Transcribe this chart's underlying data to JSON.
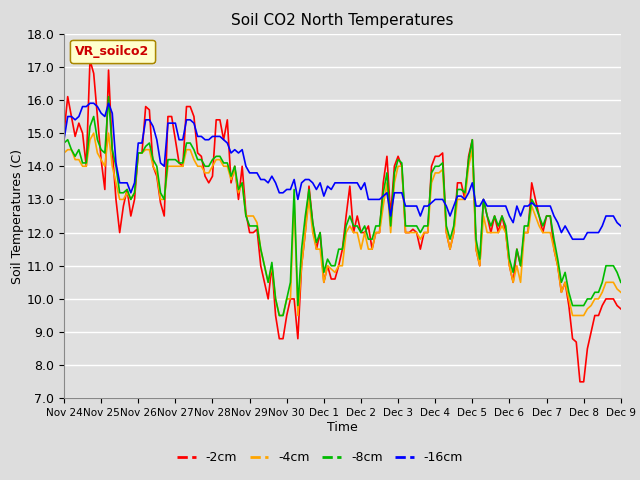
{
  "title": "Soil CO2 North Temperatures",
  "xlabel": "Time",
  "ylabel": "Soil Temperatures (C)",
  "ylim": [
    7.0,
    18.0
  ],
  "yticks": [
    7.0,
    8.0,
    9.0,
    10.0,
    11.0,
    12.0,
    13.0,
    14.0,
    15.0,
    16.0,
    17.0,
    18.0
  ],
  "x_labels": [
    "Nov 24",
    "Nov 25",
    "Nov 26",
    "Nov 27",
    "Nov 28",
    "Nov 29",
    "Nov 30",
    "Dec 1",
    "Dec 2",
    "Dec 3",
    "Dec 4",
    "Dec 5",
    "Dec 6",
    "Dec 7",
    "Dec 8",
    "Dec 9"
  ],
  "colors": {
    "-2cm": "#ff0000",
    "-4cm": "#ffa500",
    "-8cm": "#00bb00",
    "-16cm": "#0000ff"
  },
  "legend_label": "VR_soilco2",
  "fig_facecolor": "#dddddd",
  "ax_facecolor": "#e8e8e8",
  "series": {
    "-2cm": [
      15.0,
      16.1,
      15.5,
      14.9,
      15.3,
      15.0,
      14.0,
      17.2,
      16.8,
      15.5,
      14.2,
      13.3,
      16.9,
      14.5,
      13.0,
      12.0,
      12.8,
      13.3,
      12.5,
      13.0,
      14.4,
      14.4,
      15.8,
      15.7,
      14.0,
      13.7,
      12.9,
      12.5,
      15.5,
      15.5,
      14.8,
      14.1,
      14.0,
      15.8,
      15.8,
      15.5,
      14.4,
      14.3,
      13.7,
      13.5,
      13.7,
      15.4,
      15.4,
      14.8,
      15.4,
      13.5,
      14.0,
      13.0,
      14.0,
      12.6,
      12.0,
      12.0,
      12.1,
      11.0,
      10.5,
      10.0,
      11.0,
      9.5,
      8.8,
      8.8,
      9.5,
      10.0,
      10.0,
      8.8,
      11.0,
      12.0,
      13.4,
      12.3,
      11.5,
      12.0,
      10.5,
      11.0,
      10.6,
      10.6,
      11.0,
      11.5,
      12.5,
      13.4,
      12.0,
      12.5,
      12.0,
      12.0,
      12.2,
      11.5,
      12.0,
      12.0,
      13.5,
      14.3,
      12.5,
      14.0,
      14.3,
      14.0,
      12.0,
      12.0,
      12.1,
      12.0,
      11.5,
      12.0,
      12.0,
      14.0,
      14.3,
      14.3,
      14.4,
      12.0,
      11.5,
      12.0,
      13.5,
      13.5,
      13.0,
      14.3,
      14.8,
      11.5,
      11.0,
      13.0,
      12.5,
      12.0,
      12.5,
      12.0,
      12.5,
      12.0,
      11.0,
      10.5,
      11.5,
      11.0,
      12.0,
      12.0,
      13.5,
      13.0,
      12.5,
      12.0,
      12.5,
      12.5,
      11.5,
      11.0,
      10.2,
      10.5,
      9.8,
      8.8,
      8.7,
      7.5,
      7.5,
      8.5,
      9.0,
      9.5,
      9.5,
      9.8,
      10.0,
      10.0,
      10.0,
      9.8,
      9.7
    ],
    "-4cm": [
      14.4,
      14.5,
      14.5,
      14.2,
      14.2,
      14.0,
      14.0,
      14.8,
      15.0,
      14.4,
      14.2,
      14.0,
      15.0,
      14.0,
      13.5,
      13.0,
      13.0,
      13.2,
      13.0,
      13.2,
      14.4,
      14.4,
      14.5,
      14.5,
      14.0,
      13.8,
      13.0,
      13.0,
      14.0,
      14.0,
      14.0,
      14.0,
      14.0,
      14.5,
      14.5,
      14.2,
      14.0,
      14.0,
      13.8,
      13.8,
      14.0,
      14.2,
      14.2,
      14.0,
      14.0,
      13.6,
      13.9,
      13.2,
      13.5,
      12.5,
      12.5,
      12.5,
      12.3,
      11.5,
      11.0,
      10.5,
      11.0,
      10.0,
      9.5,
      9.5,
      10.0,
      10.0,
      13.0,
      9.5,
      11.0,
      12.0,
      13.0,
      12.0,
      11.5,
      11.5,
      10.5,
      11.0,
      10.9,
      10.8,
      11.0,
      11.0,
      12.0,
      12.2,
      12.0,
      12.0,
      11.5,
      12.0,
      11.5,
      11.5,
      12.0,
      12.0,
      12.8,
      13.5,
      12.0,
      13.5,
      14.0,
      14.0,
      12.0,
      12.0,
      12.0,
      12.0,
      11.8,
      12.0,
      12.0,
      13.5,
      13.8,
      13.8,
      13.9,
      12.0,
      11.5,
      12.0,
      13.0,
      13.0,
      13.0,
      14.0,
      14.5,
      11.5,
      11.0,
      12.5,
      12.0,
      12.0,
      12.0,
      12.0,
      12.2,
      12.0,
      11.0,
      10.5,
      11.0,
      10.5,
      12.0,
      12.0,
      12.8,
      12.5,
      12.2,
      12.0,
      12.0,
      12.0,
      11.5,
      11.0,
      10.2,
      10.5,
      10.0,
      9.5,
      9.5,
      9.5,
      9.5,
      9.7,
      9.8,
      10.0,
      10.0,
      10.2,
      10.5,
      10.5,
      10.5,
      10.3,
      10.2
    ],
    "-8cm": [
      14.7,
      14.8,
      14.5,
      14.3,
      14.5,
      14.1,
      14.1,
      15.2,
      15.5,
      14.8,
      14.5,
      14.4,
      16.1,
      14.5,
      14.0,
      13.2,
      13.2,
      13.3,
      13.0,
      13.2,
      14.4,
      14.4,
      14.6,
      14.7,
      14.2,
      14.0,
      13.2,
      13.0,
      14.2,
      14.2,
      14.2,
      14.1,
      14.1,
      14.7,
      14.7,
      14.5,
      14.2,
      14.2,
      14.0,
      14.0,
      14.2,
      14.3,
      14.3,
      14.1,
      14.1,
      13.7,
      14.0,
      13.3,
      13.5,
      12.5,
      12.2,
      12.2,
      12.2,
      11.5,
      11.0,
      10.5,
      11.1,
      10.0,
      9.5,
      9.5,
      10.0,
      10.5,
      13.3,
      9.8,
      11.5,
      12.5,
      13.3,
      12.3,
      11.7,
      12.0,
      10.8,
      11.2,
      11.0,
      11.0,
      11.5,
      11.5,
      12.2,
      12.5,
      12.2,
      12.2,
      12.0,
      12.2,
      11.8,
      11.8,
      12.2,
      12.2,
      13.2,
      13.8,
      12.2,
      13.8,
      14.2,
      14.1,
      12.2,
      12.2,
      12.2,
      12.2,
      12.0,
      12.2,
      12.2,
      13.8,
      14.0,
      14.0,
      14.1,
      12.2,
      11.8,
      12.2,
      13.3,
      13.3,
      13.2,
      14.2,
      14.8,
      11.8,
      11.2,
      13.0,
      12.5,
      12.2,
      12.5,
      12.2,
      12.5,
      12.2,
      11.2,
      10.8,
      11.5,
      11.0,
      12.2,
      12.2,
      13.0,
      12.8,
      12.5,
      12.2,
      12.5,
      12.5,
      11.8,
      11.2,
      10.5,
      10.8,
      10.2,
      9.8,
      9.8,
      9.8,
      9.8,
      10.0,
      10.0,
      10.2,
      10.2,
      10.5,
      11.0,
      11.0,
      11.0,
      10.8,
      10.5
    ],
    "-16cm": [
      14.8,
      15.5,
      15.5,
      15.4,
      15.5,
      15.8,
      15.8,
      15.9,
      15.9,
      15.8,
      15.6,
      15.5,
      15.9,
      15.6,
      14.1,
      13.5,
      13.5,
      13.5,
      13.2,
      13.5,
      14.7,
      14.7,
      15.4,
      15.4,
      15.2,
      14.8,
      14.1,
      14.0,
      15.3,
      15.3,
      15.3,
      14.8,
      14.8,
      15.4,
      15.4,
      15.3,
      14.9,
      14.9,
      14.8,
      14.8,
      14.9,
      14.9,
      14.9,
      14.8,
      14.7,
      14.4,
      14.5,
      14.4,
      14.5,
      14.0,
      13.8,
      13.8,
      13.8,
      13.6,
      13.6,
      13.5,
      13.7,
      13.5,
      13.2,
      13.2,
      13.3,
      13.3,
      13.6,
      13.0,
      13.5,
      13.6,
      13.6,
      13.5,
      13.3,
      13.5,
      13.1,
      13.4,
      13.3,
      13.5,
      13.5,
      13.5,
      13.5,
      13.5,
      13.5,
      13.5,
      13.3,
      13.5,
      13.0,
      13.0,
      13.0,
      13.0,
      13.1,
      13.2,
      12.5,
      13.2,
      13.2,
      13.2,
      12.8,
      12.8,
      12.8,
      12.8,
      12.5,
      12.8,
      12.8,
      12.9,
      13.0,
      13.0,
      13.0,
      12.8,
      12.5,
      12.8,
      13.1,
      13.1,
      13.0,
      13.2,
      13.5,
      12.8,
      12.8,
      13.0,
      12.8,
      12.8,
      12.8,
      12.8,
      12.8,
      12.8,
      12.5,
      12.3,
      12.8,
      12.5,
      12.8,
      12.8,
      12.9,
      12.8,
      12.8,
      12.8,
      12.8,
      12.8,
      12.5,
      12.3,
      12.0,
      12.2,
      12.0,
      11.8,
      11.8,
      11.8,
      11.8,
      12.0,
      12.0,
      12.0,
      12.0,
      12.2,
      12.5,
      12.5,
      12.5,
      12.3,
      12.2
    ]
  }
}
